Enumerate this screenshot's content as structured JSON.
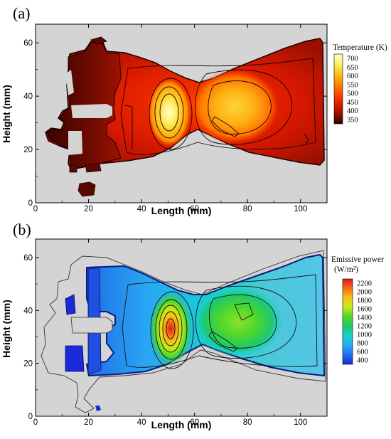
{
  "chart_data": [
    {
      "type": "heatmap",
      "panel_label": "(a)",
      "xlabel": "Length (mm)",
      "ylabel": "Height (mm)",
      "xlim": [
        0,
        110
      ],
      "ylim": [
        0,
        67
      ],
      "xticks": [
        "0",
        "20",
        "40",
        "60",
        "80",
        "100"
      ],
      "yticks": [
        "0",
        "20",
        "40",
        "60"
      ],
      "xtick_values": [
        0,
        20,
        40,
        60,
        80,
        100
      ],
      "ytick_values": [
        0,
        20,
        40,
        60
      ],
      "legend_title": "Temperature (K)",
      "legend_levels": [
        "700",
        "650",
        "600",
        "550",
        "500",
        "450",
        "400",
        "350"
      ],
      "colors": [
        "#ffffd4",
        "#fff06a",
        "#ffc21a",
        "#ff8c00",
        "#ff4a00",
        "#e11d00",
        "#9b1000",
        "#5a0800",
        "#2a0200"
      ],
      "background": "#d4d4d4",
      "hotspot_peaks": [
        {
          "x": 51,
          "y": 34,
          "value": 700
        },
        {
          "x": 77,
          "y": 37,
          "value": 600
        }
      ]
    },
    {
      "type": "heatmap",
      "panel_label": "(b)",
      "xlabel": "Length (mm)",
      "ylabel": "Height (mm)",
      "xlim": [
        0,
        110
      ],
      "ylim": [
        0,
        67
      ],
      "xticks": [
        "0",
        "20",
        "40",
        "60",
        "80",
        "100"
      ],
      "yticks": [
        "0",
        "20",
        "40",
        "60"
      ],
      "xtick_values": [
        0,
        20,
        40,
        60,
        80,
        100
      ],
      "ytick_values": [
        0,
        20,
        40,
        60
      ],
      "legend_title_line1": "Emissive power",
      "legend_title_line2": "(W/m²)",
      "legend_levels": [
        "2200",
        "2000",
        "1800",
        "1600",
        "1400",
        "1200",
        "1000",
        "800",
        "600",
        "400"
      ],
      "colors": [
        "#e0151a",
        "#f86a1a",
        "#f5c516",
        "#c6e81a",
        "#4fd82a",
        "#1ec86a",
        "#18d3d0",
        "#2aa6f2",
        "#1f6ee6",
        "#1a2ad8"
      ],
      "background": "#d4d4d4",
      "hotspot_peaks": [
        {
          "x": 51,
          "y": 32,
          "value": 2200
        },
        {
          "x": 78,
          "y": 37,
          "value": 1400
        }
      ]
    }
  ]
}
